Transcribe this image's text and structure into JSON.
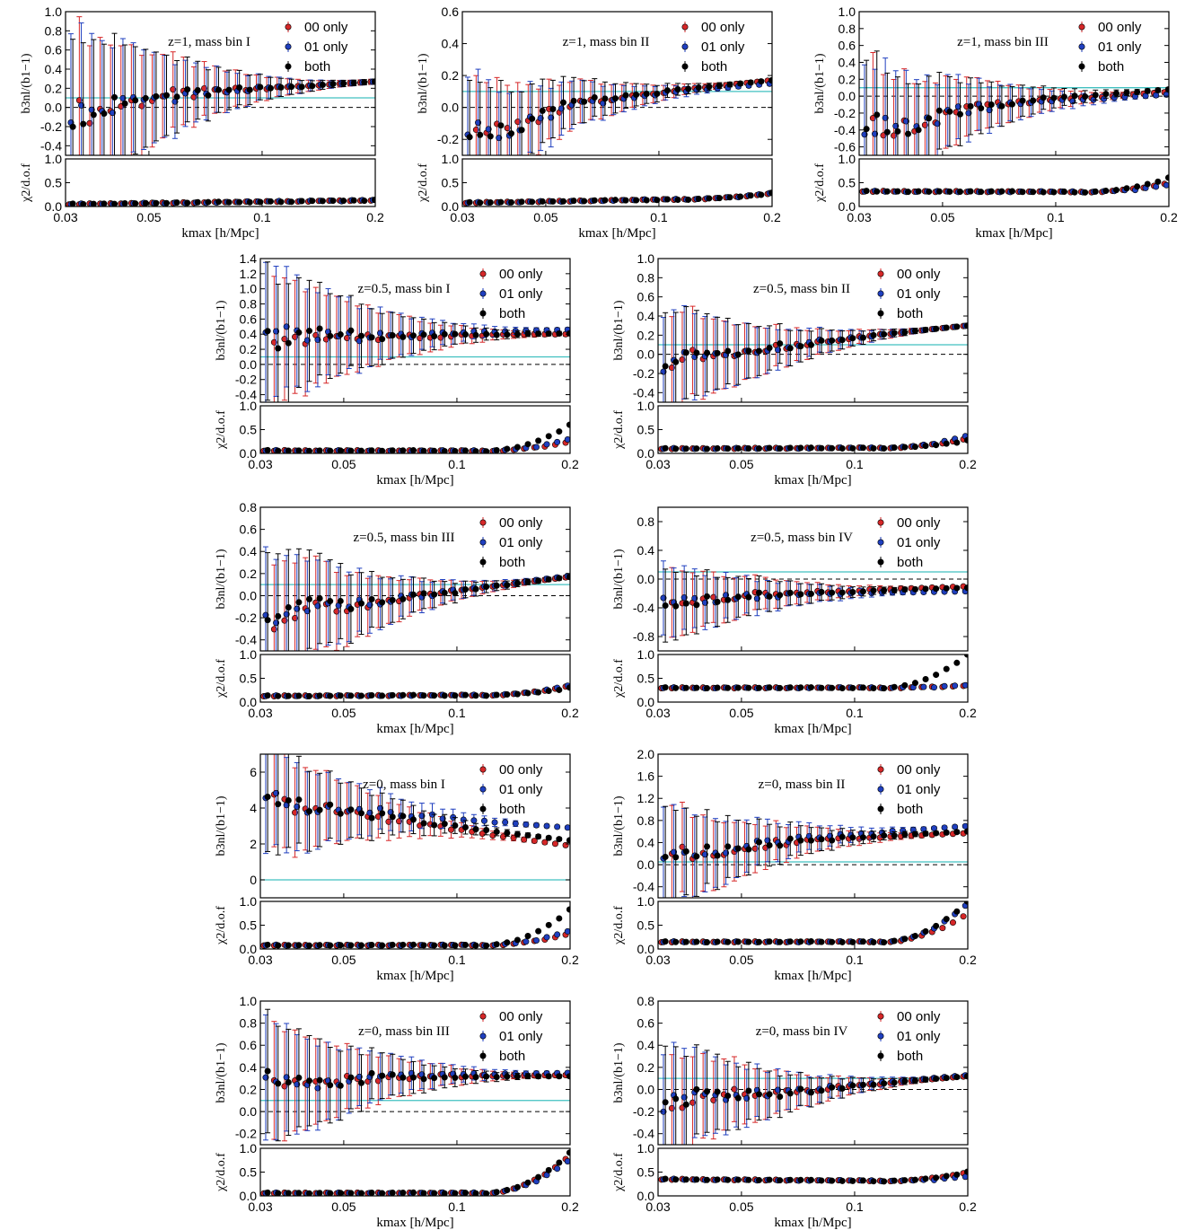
{
  "figure": {
    "upper_ylabel": "b3nl/(b1−1)",
    "lower_ylabel": "χ2/d.o.f",
    "xlabel": "kmax [h/Mpc]",
    "x_ticks": [
      "0.03",
      "0.05",
      "0.1",
      "0.2"
    ],
    "legend": [
      {
        "label": "00 only",
        "color": "#d62728"
      },
      {
        "label": "01 only",
        "color": "#1f3fbf"
      },
      {
        "label": "both",
        "color": "#000000"
      }
    ],
    "reference_line_color": "#40c0c0"
  },
  "chart_data": [
    {
      "type": "scatter",
      "annotation": "z=1,  mass bin I",
      "xscale": "log",
      "xlim": [
        0.03,
        0.2
      ],
      "ylim": [
        -0.5,
        1.0
      ],
      "yticks": [
        "-0.4",
        "-0.2",
        "0.0",
        "0.2",
        "0.4",
        "0.6",
        "0.8",
        "1.0"
      ],
      "start": 0.0,
      "end": 0.27,
      "dip": -0.12,
      "k_dip": 0.036,
      "err0": 0.9,
      "offsets": [
        0.0,
        0.0,
        0.0
      ],
      "reference": 0.1,
      "chi_start": 0.05,
      "chi_end": 0.13,
      "chi_rise": [
        0,
        0,
        0
      ]
    },
    {
      "type": "scatter",
      "annotation": "z=1,  mass bin II",
      "xscale": "log",
      "xlim": [
        0.03,
        0.2
      ],
      "ylim": [
        -0.3,
        0.6
      ],
      "yticks": [
        "-0.2",
        "0.0",
        "0.2",
        "0.4",
        "0.6"
      ],
      "start": -0.1,
      "end": 0.17,
      "dip": -0.25,
      "k_dip": 0.04,
      "err0": 0.35,
      "offsets": [
        0.0,
        -0.02,
        0.0
      ],
      "reference": 0.1,
      "chi_start": 0.08,
      "chi_end": 0.18,
      "chi_rise": [
        0.1,
        0.1,
        0.1
      ]
    },
    {
      "type": "scatter",
      "annotation": "z=1,  mass bin III",
      "xscale": "log",
      "xlim": [
        0.03,
        0.2
      ],
      "ylim": [
        -0.7,
        1.0
      ],
      "yticks": [
        "-0.6",
        "-0.4",
        "-0.2",
        "0.0",
        "0.2",
        "0.4",
        "0.6",
        "0.8",
        "1.0"
      ],
      "start": -0.3,
      "end": 0.05,
      "dip": -0.5,
      "k_dip": 0.04,
      "err0": 0.8,
      "offsets": [
        0.0,
        -0.03,
        0.03
      ],
      "reference": 0.1,
      "chi_start": 0.32,
      "chi_end": 0.3,
      "chi_rise": [
        0.2,
        0.15,
        0.3
      ]
    },
    {
      "type": "scatter",
      "annotation": "z=0.5,  mass bin I",
      "xscale": "log",
      "xlim": [
        0.03,
        0.2
      ],
      "ylim": [
        -0.5,
        1.4
      ],
      "yticks": [
        "-0.4",
        "-0.2",
        "0.0",
        "0.2",
        "0.4",
        "0.6",
        "0.8",
        "1.0",
        "1.2",
        "1.4"
      ],
      "start": 0.35,
      "end": 0.42,
      "dip": 0.3,
      "k_dip": 0.07,
      "err0": 0.9,
      "offsets": [
        -0.02,
        0.04,
        -0.01
      ],
      "reference": 0.1,
      "chi_start": 0.06,
      "chi_end": 0.05,
      "chi_rise": [
        0.2,
        0.25,
        0.55
      ]
    },
    {
      "type": "scatter",
      "annotation": "z=0.5,  mass bin II",
      "xscale": "log",
      "xlim": [
        0.03,
        0.2
      ],
      "ylim": [
        -0.5,
        1.0
      ],
      "yticks": [
        "-0.4",
        "-0.2",
        "0.0",
        "0.2",
        "0.4",
        "0.6",
        "0.8",
        "1.0"
      ],
      "start": -0.15,
      "end": 0.3,
      "dip": -0.1,
      "k_dip": 0.04,
      "err0": 0.55,
      "offsets": [
        0.0,
        0.0,
        0.0
      ],
      "reference": 0.1,
      "chi_start": 0.1,
      "chi_end": 0.12,
      "chi_rise": [
        0.2,
        0.25,
        0.15
      ]
    },
    {
      "type": "scatter",
      "annotation": "z=0.5,  mass bin III",
      "xscale": "log",
      "xlim": [
        0.03,
        0.2
      ],
      "ylim": [
        -0.5,
        0.8
      ],
      "yticks": [
        "-0.4",
        "-0.2",
        "0.0",
        "0.2",
        "0.4",
        "0.6",
        "0.8"
      ],
      "start": -0.3,
      "end": 0.17,
      "dip": -0.2,
      "k_dip": 0.04,
      "err0": 0.6,
      "offsets": [
        0.0,
        0.01,
        0.0
      ],
      "reference": 0.1,
      "chi_start": 0.13,
      "chi_end": 0.15,
      "chi_rise": [
        0.2,
        0.2,
        0.15
      ]
    },
    {
      "type": "scatter",
      "annotation": "z=0.5,  mass bin IV",
      "xscale": "log",
      "xlim": [
        0.03,
        0.2
      ],
      "ylim": [
        -1.0,
        1.0
      ],
      "yticks": [
        "-0.8",
        "-0.4",
        "0.0",
        "0.4",
        "0.8"
      ],
      "start": -0.3,
      "end": -0.12,
      "dip": -0.35,
      "k_dip": 0.035,
      "err0": 0.5,
      "offsets": [
        0.02,
        -0.05,
        0.0
      ],
      "reference": 0.1,
      "chi_start": 0.3,
      "chi_end": 0.3,
      "chi_rise": [
        0.05,
        0.05,
        0.7
      ]
    },
    {
      "type": "scatter",
      "annotation": "z=0,  mass bin I",
      "xscale": "log",
      "xlim": [
        0.03,
        0.2
      ],
      "ylim": [
        -1.0,
        7.0
      ],
      "yticks": [
        "0",
        "2",
        "4",
        "6"
      ],
      "start": 5.0,
      "end": 2.2,
      "dip": 4.5,
      "k_dip": 0.036,
      "err0": 3.0,
      "offsets": [
        -0.3,
        0.7,
        0.0
      ],
      "reference": 0.0,
      "chi_start": 0.08,
      "chi_end": 0.08,
      "chi_rise": [
        0.25,
        0.3,
        0.75
      ]
    },
    {
      "type": "scatter",
      "annotation": "z=0,  mass bin II",
      "xscale": "log",
      "xlim": [
        0.03,
        0.2
      ],
      "ylim": [
        -0.6,
        2.0
      ],
      "yticks": [
        "-0.4",
        "0.0",
        "0.4",
        "0.8",
        "1.2",
        "1.6",
        "2.0"
      ],
      "start": 0.2,
      "end": 0.6,
      "dip": 0.1,
      "k_dip": 0.04,
      "err0": 0.9,
      "offsets": [
        -0.03,
        0.1,
        0.0
      ],
      "reference": 0.05,
      "chi_start": 0.15,
      "chi_end": 0.15,
      "chi_rise": [
        0.6,
        0.8,
        0.85
      ]
    },
    {
      "type": "scatter",
      "annotation": "z=0,  mass bin III",
      "xscale": "log",
      "xlim": [
        0.03,
        0.2
      ],
      "ylim": [
        -0.3,
        1.0
      ],
      "yticks": [
        "-0.2",
        "0.0",
        "0.2",
        "0.4",
        "0.6",
        "0.8",
        "1.0"
      ],
      "start": 0.3,
      "end": 0.33,
      "dip": 0.2,
      "k_dip": 0.04,
      "err0": 0.55,
      "offsets": [
        0.0,
        0.02,
        -0.01
      ],
      "reference": 0.1,
      "chi_start": 0.06,
      "chi_end": 0.06,
      "chi_rise": [
        0.8,
        0.7,
        0.85
      ]
    },
    {
      "type": "scatter",
      "annotation": "z=0,  mass bin IV",
      "xscale": "log",
      "xlim": [
        0.03,
        0.2
      ],
      "ylim": [
        -0.5,
        0.8
      ],
      "yticks": [
        "-0.4",
        "-0.2",
        "0.0",
        "0.2",
        "0.4",
        "0.6",
        "0.8"
      ],
      "start": -0.2,
      "end": 0.12,
      "dip": -0.1,
      "k_dip": 0.04,
      "err0": 0.5,
      "offsets": [
        0.0,
        0.01,
        0.0
      ],
      "reference": 0.1,
      "chi_start": 0.35,
      "chi_end": 0.3,
      "chi_rise": [
        0.2,
        0.1,
        0.2
      ]
    }
  ]
}
